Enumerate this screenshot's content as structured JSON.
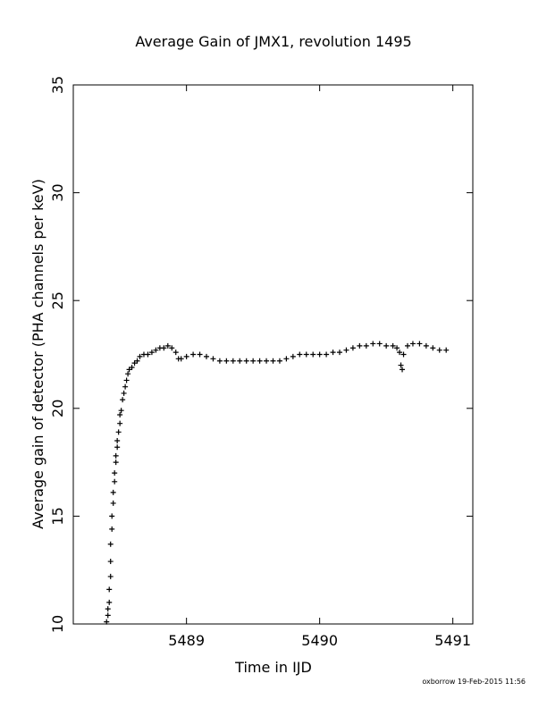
{
  "chart_data": {
    "type": "scatter",
    "title": "Average Gain of JMX1, revolution 1495",
    "xlabel": "Time in IJD",
    "ylabel": "Average gain of detector (PHA channels per keV)",
    "xlim": [
      5488.15,
      5491.15
    ],
    "ylim": [
      10,
      35
    ],
    "xticks": [
      5489,
      5490,
      5491
    ],
    "yticks": [
      10,
      15,
      20,
      25,
      30,
      35
    ],
    "marker": "+",
    "grid": false,
    "series": [
      {
        "points": [
          [
            5488.4,
            10.1
          ],
          [
            5488.41,
            10.4
          ],
          [
            5488.41,
            10.7
          ],
          [
            5488.42,
            11.0
          ],
          [
            5488.42,
            11.6
          ],
          [
            5488.43,
            12.2
          ],
          [
            5488.43,
            12.9
          ],
          [
            5488.43,
            13.7
          ],
          [
            5488.44,
            14.4
          ],
          [
            5488.44,
            15.0
          ],
          [
            5488.45,
            15.6
          ],
          [
            5488.45,
            16.1
          ],
          [
            5488.46,
            16.6
          ],
          [
            5488.46,
            17.0
          ],
          [
            5488.47,
            17.5
          ],
          [
            5488.47,
            17.8
          ],
          [
            5488.48,
            18.2
          ],
          [
            5488.48,
            18.5
          ],
          [
            5488.49,
            18.9
          ],
          [
            5488.5,
            19.3
          ],
          [
            5488.5,
            19.7
          ],
          [
            5488.51,
            19.9
          ],
          [
            5488.52,
            20.4
          ],
          [
            5488.53,
            20.7
          ],
          [
            5488.54,
            21.0
          ],
          [
            5488.55,
            21.3
          ],
          [
            5488.56,
            21.6
          ],
          [
            5488.57,
            21.8
          ],
          [
            5488.59,
            21.9
          ],
          [
            5488.61,
            22.1
          ],
          [
            5488.63,
            22.2
          ],
          [
            5488.65,
            22.4
          ],
          [
            5488.68,
            22.5
          ],
          [
            5488.71,
            22.5
          ],
          [
            5488.74,
            22.6
          ],
          [
            5488.77,
            22.7
          ],
          [
            5488.8,
            22.8
          ],
          [
            5488.83,
            22.8
          ],
          [
            5488.86,
            22.9
          ],
          [
            5488.89,
            22.8
          ],
          [
            5488.92,
            22.6
          ],
          [
            5488.94,
            22.3
          ],
          [
            5488.96,
            22.3
          ],
          [
            5489.0,
            22.4
          ],
          [
            5489.05,
            22.5
          ],
          [
            5489.1,
            22.5
          ],
          [
            5489.15,
            22.4
          ],
          [
            5489.2,
            22.3
          ],
          [
            5489.25,
            22.2
          ],
          [
            5489.3,
            22.2
          ],
          [
            5489.35,
            22.2
          ],
          [
            5489.4,
            22.2
          ],
          [
            5489.45,
            22.2
          ],
          [
            5489.5,
            22.2
          ],
          [
            5489.55,
            22.2
          ],
          [
            5489.6,
            22.2
          ],
          [
            5489.65,
            22.2
          ],
          [
            5489.7,
            22.2
          ],
          [
            5489.75,
            22.3
          ],
          [
            5489.8,
            22.4
          ],
          [
            5489.85,
            22.5
          ],
          [
            5489.9,
            22.5
          ],
          [
            5489.95,
            22.5
          ],
          [
            5490.0,
            22.5
          ],
          [
            5490.05,
            22.5
          ],
          [
            5490.1,
            22.6
          ],
          [
            5490.15,
            22.6
          ],
          [
            5490.2,
            22.7
          ],
          [
            5490.25,
            22.8
          ],
          [
            5490.3,
            22.9
          ],
          [
            5490.35,
            22.9
          ],
          [
            5490.4,
            23.0
          ],
          [
            5490.45,
            23.0
          ],
          [
            5490.5,
            22.9
          ],
          [
            5490.55,
            22.9
          ],
          [
            5490.58,
            22.8
          ],
          [
            5490.6,
            22.6
          ],
          [
            5490.61,
            22.0
          ],
          [
            5490.62,
            21.8
          ],
          [
            5490.63,
            22.5
          ],
          [
            5490.66,
            22.9
          ],
          [
            5490.7,
            23.0
          ],
          [
            5490.75,
            23.0
          ],
          [
            5490.8,
            22.9
          ],
          [
            5490.85,
            22.8
          ],
          [
            5490.9,
            22.7
          ],
          [
            5490.95,
            22.7
          ]
        ]
      }
    ]
  },
  "footer": "oxborrow 19-Feb-2015 11:56"
}
